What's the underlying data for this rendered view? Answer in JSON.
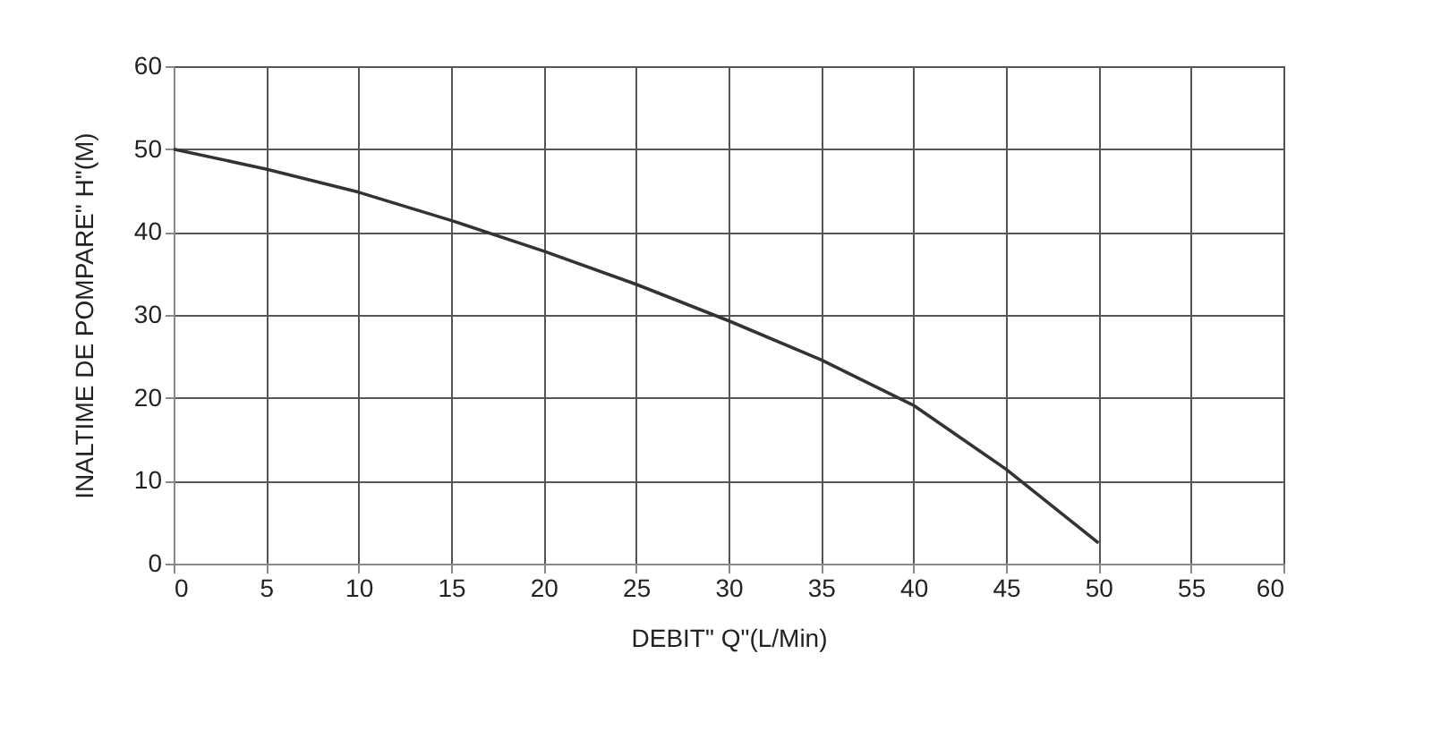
{
  "chart_data": {
    "type": "line",
    "xlabel": "DEBIT\" Q\"(L/Min)",
    "ylabel": "INALTIME DE POMPARE\" H\"(M)",
    "x": [
      0,
      5,
      10,
      15,
      20,
      25,
      30,
      35,
      40,
      45,
      50
    ],
    "series": [
      {
        "color": "#333333",
        "values": [
          50,
          47.6,
          44.8,
          41.4,
          37.7,
          33.7,
          29.3,
          24.6,
          19.1,
          11.4,
          2.5
        ]
      }
    ],
    "xlim": [
      0,
      60
    ],
    "xticks": [
      0,
      5,
      10,
      15,
      20,
      25,
      30,
      35,
      40,
      45,
      50,
      55,
      60
    ],
    "ylim": [
      0,
      60
    ],
    "yticks": [
      0,
      10,
      20,
      30,
      40,
      50,
      60
    ],
    "grid": true,
    "legend": false,
    "marker": "none",
    "line_style": "solid"
  }
}
